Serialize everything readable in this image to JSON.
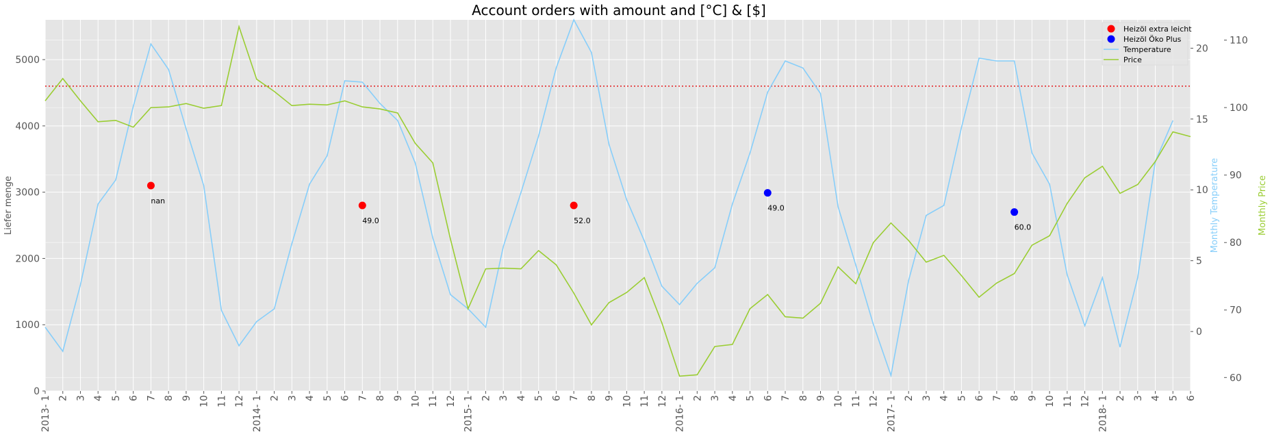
{
  "chart_data": {
    "type": "line",
    "title": "Account orders with amount and [°C] & [$]",
    "ylabel_left": "Liefer menge",
    "ylabel_right_temp": "Monthly Temperature",
    "ylabel_right_price": "Monthly Price",
    "x_year_labels": [
      "2013-",
      "2014-",
      "2015-",
      "2016-",
      "2017-",
      "2018-"
    ],
    "x_month_labels": [
      "1",
      "2",
      "3",
      "4",
      "5",
      "6",
      "7",
      "8",
      "9",
      "10",
      "11",
      "12",
      "1",
      "2",
      "3",
      "4",
      "5",
      "6",
      "7",
      "8",
      "9",
      "10",
      "11",
      "12",
      "1",
      "2",
      "3",
      "4",
      "5",
      "6",
      "7",
      "8",
      "9",
      "10",
      "11",
      "12",
      "1",
      "2",
      "3",
      "4",
      "5",
      "6",
      "7",
      "8",
      "9",
      "10",
      "11",
      "12",
      "1",
      "2",
      "3",
      "4",
      "5",
      "6",
      "7",
      "8",
      "9",
      "10",
      "11",
      "12",
      "1",
      "2",
      "3",
      "4",
      "5",
      "6"
    ],
    "y_left_ticks": [
      0,
      1000,
      2000,
      3000,
      4000,
      5000
    ],
    "y_left_lim": [
      0,
      5600
    ],
    "y_temp_ticks": [
      0,
      5,
      10,
      15,
      20
    ],
    "y_temp_lim": [
      -4.2,
      22
    ],
    "y_price_ticks": [
      60,
      70,
      80,
      90,
      100,
      110
    ],
    "y_price_lim": [
      58,
      113
    ],
    "reference_line": {
      "value": 4600,
      "color": "#e41a1c"
    },
    "temperature": {
      "name": "Temperature",
      "color": "#87cefa",
      "values": [
        0.3,
        -1.4,
        3.3,
        9.0,
        10.7,
        15.9,
        20.3,
        18.5,
        14.3,
        10.3,
        1.5,
        -1.0,
        0.7,
        1.6,
        6.2,
        10.4,
        12.4,
        17.7,
        17.6,
        16.1,
        14.9,
        11.9,
        6.6,
        2.6,
        1.6,
        0.3,
        6.0,
        9.8,
        13.8,
        18.6,
        22.0,
        19.7,
        13.2,
        9.3,
        6.4,
        3.2,
        1.9,
        3.4,
        4.5,
        9.0,
        12.6,
        16.9,
        19.1,
        18.6,
        16.8,
        8.8,
        4.7,
        0.5,
        -3.1,
        3.6,
        8.2,
        8.9,
        14.4,
        19.3,
        19.1,
        19.1,
        12.6,
        10.4,
        4.0,
        0.4,
        3.8,
        -1.1,
        3.8,
        12.0,
        14.9
      ]
    },
    "price": {
      "name": "Price",
      "color": "#9acd32",
      "values": [
        101.0,
        104.3,
        101.0,
        97.9,
        98.1,
        97.1,
        100.0,
        100.1,
        100.6,
        99.9,
        100.3,
        112.0,
        104.2,
        102.4,
        100.3,
        100.5,
        100.4,
        101.0,
        100.1,
        99.8,
        99.2,
        94.7,
        91.8,
        80.5,
        70.2,
        76.1,
        76.2,
        76.1,
        78.8,
        76.7,
        72.5,
        67.8,
        71.1,
        72.6,
        74.8,
        68.1,
        60.2,
        60.4,
        64.6,
        64.9,
        70.2,
        72.3,
        69.0,
        68.8,
        71.0,
        76.4,
        73.9,
        80.0,
        82.9,
        80.3,
        77.1,
        78.1,
        75.1,
        71.9,
        74.0,
        75.4,
        79.6,
        81.0,
        85.8,
        89.6,
        91.3,
        87.3,
        88.6,
        92.0,
        96.4,
        95.7
      ]
    },
    "orders": [
      {
        "series": "Heizöl extra leicht",
        "x_index": 6,
        "amount": 3100,
        "label": "nan",
        "color": "#ff0000"
      },
      {
        "series": "Heizöl extra leicht",
        "x_index": 18,
        "amount": 2800,
        "label": "49.0",
        "color": "#ff0000"
      },
      {
        "series": "Heizöl extra leicht",
        "x_index": 30,
        "amount": 2800,
        "label": "52.0",
        "color": "#ff0000"
      },
      {
        "series": "Heizöl Öko Plus",
        "x_index": 41,
        "amount": 2990,
        "label": "49.0",
        "color": "#0000ff"
      },
      {
        "series": "Heizöl Öko Plus",
        "x_index": 55,
        "amount": 2700,
        "label": "60.0",
        "color": "#0000ff"
      }
    ],
    "legend": {
      "placement": "top-right",
      "entries": [
        {
          "label": "Heizöl extra leicht",
          "marker": "dot",
          "color": "#ff0000"
        },
        {
          "label": "Heizöl Öko Plus",
          "marker": "dot",
          "color": "#0000ff"
        },
        {
          "label": "Temperature",
          "marker": "line",
          "color": "#87cefa"
        },
        {
          "label": "Price",
          "marker": "line",
          "color": "#9acd32"
        }
      ]
    },
    "grid": true,
    "background_color": "#e5e5e5"
  }
}
